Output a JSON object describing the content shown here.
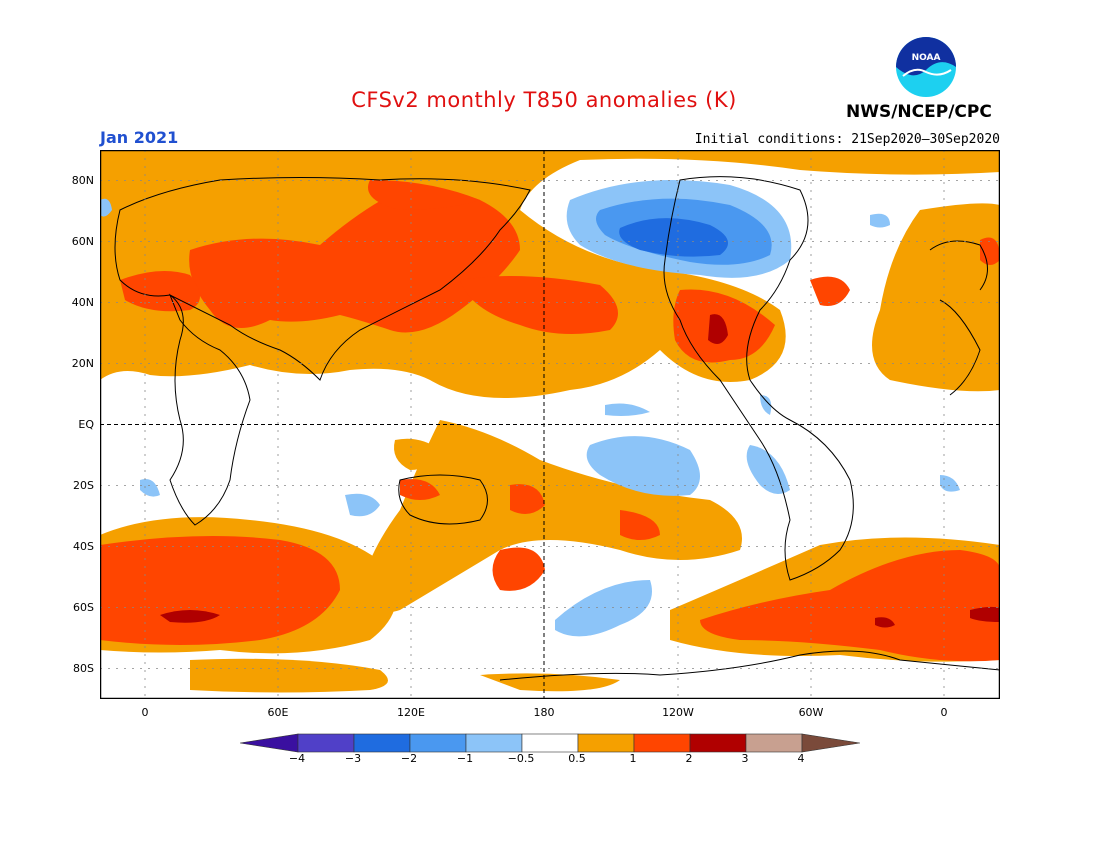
{
  "header": {
    "title": "CFSv2 monthly T850 anomalies (K)",
    "period": "Jan 2021",
    "initial_conditions": "Initial conditions: 21Sep2020–30Sep2020",
    "agency": "NWS/NCEP/CPC",
    "logo_text": "NOAA"
  },
  "axes": {
    "lat_labels": [
      "80N",
      "60N",
      "40N",
      "20N",
      "EQ",
      "20S",
      "40S",
      "60S",
      "80S"
    ],
    "lon_labels": [
      "0",
      "60E",
      "120E",
      "180",
      "120W",
      "60W",
      "0"
    ]
  },
  "colorbar": {
    "labels": [
      "−4",
      "−3",
      "−2",
      "−1",
      "−0.5",
      "0.5",
      "1",
      "2",
      "3",
      "4"
    ],
    "colors": [
      "#3a10a0",
      "#5040c8",
      "#1f6ce0",
      "#4a98f0",
      "#8cc4f8",
      "#ffffff",
      "#f5a000",
      "#ff4500",
      "#b00000",
      "#c8a090",
      "#7a4a3a"
    ]
  }
}
